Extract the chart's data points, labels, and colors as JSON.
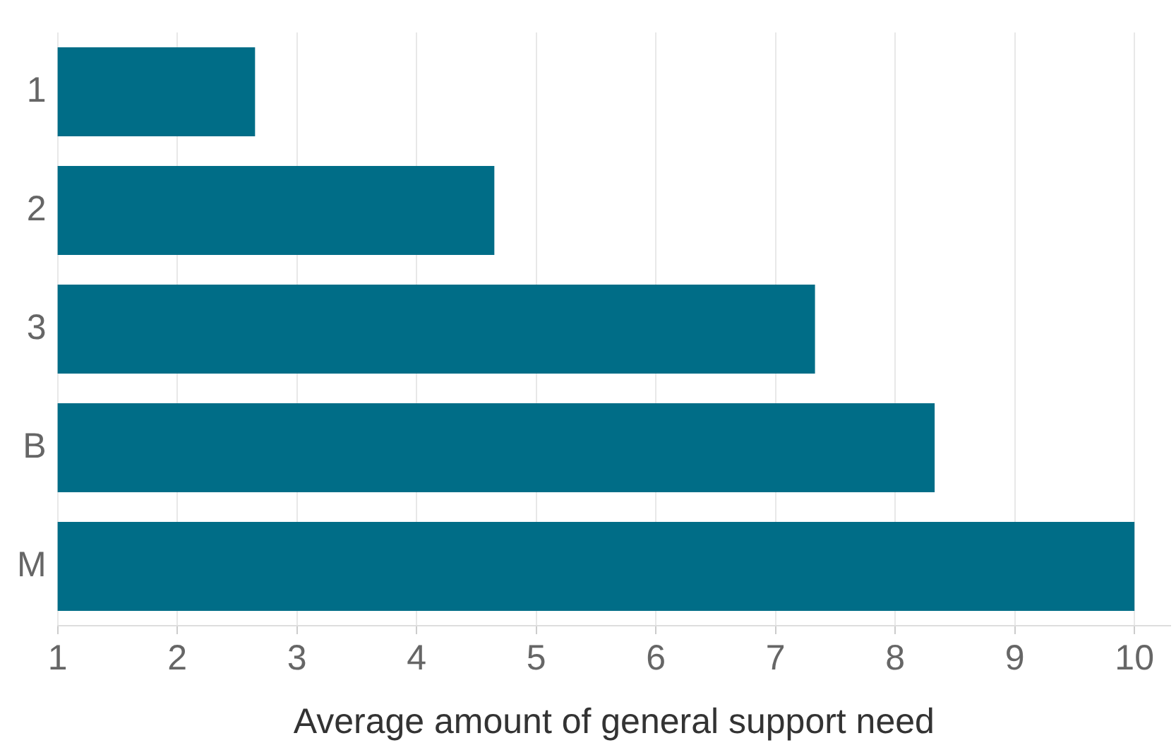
{
  "chart_data": {
    "type": "bar",
    "orientation": "horizontal",
    "categories": [
      "1",
      "2",
      "3",
      "B",
      "M"
    ],
    "values": [
      2.65,
      4.65,
      7.33,
      8.33,
      10
    ],
    "color": "#006d87",
    "xlabel": "Average amount of general support need",
    "xlim": [
      1,
      10.3
    ],
    "xticks": [
      1,
      2,
      3,
      4,
      5,
      6,
      7,
      8,
      9,
      10
    ],
    "grid": "x",
    "legend": false
  }
}
